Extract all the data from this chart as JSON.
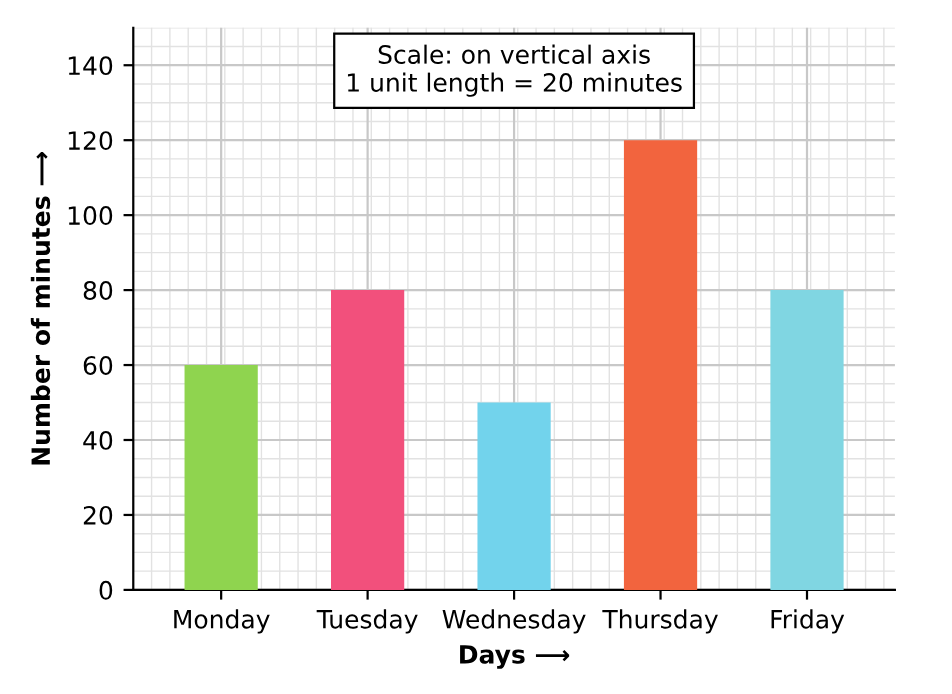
{
  "chart_data": {
    "type": "bar",
    "categories": [
      "Monday",
      "Tuesday",
      "Wednesday",
      "Thursday",
      "Friday"
    ],
    "values": [
      60,
      80,
      50,
      120,
      80
    ],
    "colors": [
      "#8fd44f",
      "#f2507c",
      "#72d3ec",
      "#f2643e",
      "#80d6e2"
    ],
    "xlabel": "Days ⟶",
    "ylabel": "Number of minutes ⟶",
    "ylim": [
      0,
      150
    ],
    "yticks": [
      0,
      20,
      40,
      60,
      80,
      100,
      120,
      140
    ],
    "grid": true,
    "annotations": [
      "Scale: on vertical axis\n1 unit length = 20 minutes"
    ]
  }
}
